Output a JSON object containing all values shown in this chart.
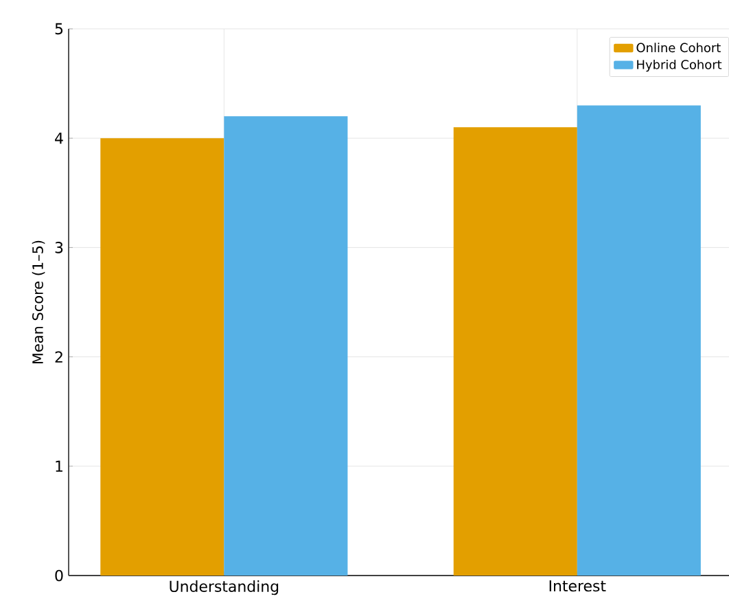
{
  "chart_data": {
    "type": "bar",
    "ylabel": "Mean Score (1–5)",
    "categories": [
      "Understanding",
      "Interest"
    ],
    "series": [
      {
        "name": "Online Cohort",
        "color": "#e39f00",
        "values": [
          4.0,
          4.1
        ]
      },
      {
        "name": "Hybrid Cohort",
        "color": "#56b1e6",
        "values": [
          4.2,
          4.3
        ]
      }
    ],
    "ylim": [
      0,
      5
    ],
    "yticks": [
      0,
      1,
      2,
      3,
      4,
      5
    ],
    "grid": true,
    "legend": "top right"
  }
}
